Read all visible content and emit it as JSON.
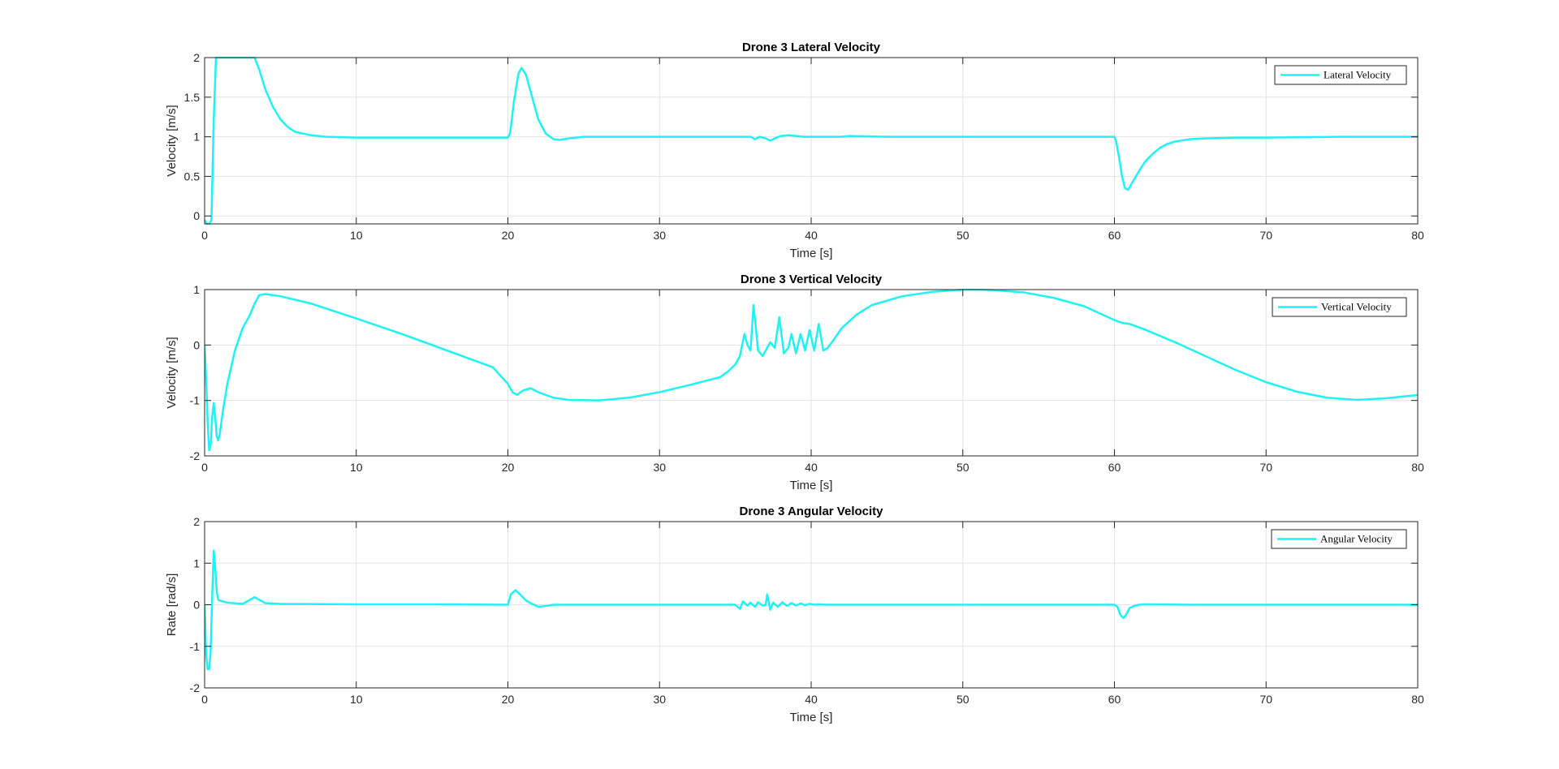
{
  "figure": {
    "background": "#ffffff",
    "line_color": "#1ff2f2",
    "grid_color": "#e3e3e3"
  },
  "chart_data": [
    {
      "type": "line",
      "title": "Drone 3 Lateral Velocity",
      "xlabel": "Time [s]",
      "ylabel": "Velocity [m/s]",
      "xlim": [
        0,
        80
      ],
      "ylim": [
        -0.1,
        2
      ],
      "xticks": [
        0,
        10,
        20,
        30,
        40,
        50,
        60,
        70,
        80
      ],
      "yticks": [
        0,
        0.5,
        1,
        1.5,
        2
      ],
      "ytick_labels": [
        "0",
        "0.5",
        "1",
        "1.5",
        "2"
      ],
      "grid": true,
      "legend_position": "top-right",
      "series": [
        {
          "name": "Lateral Velocity",
          "x": [
            0,
            0.15,
            0.3,
            0.45,
            0.6,
            0.75,
            3.3,
            3.6,
            4.0,
            4.5,
            5.0,
            5.5,
            6.0,
            7.0,
            8.0,
            10,
            15,
            20,
            20.15,
            20.4,
            20.7,
            20.9,
            21.2,
            21.6,
            22.0,
            22.5,
            23.0,
            23.4,
            24,
            25,
            26,
            30,
            35,
            36,
            36.3,
            36.6,
            37.0,
            37.3,
            37.6,
            38.0,
            38.5,
            39.5,
            40.5,
            42,
            42.5,
            45,
            50,
            55,
            60,
            60.1,
            60.3,
            60.5,
            60.7,
            60.9,
            61.2,
            61.6,
            62.0,
            62.5,
            63.0,
            63.5,
            64,
            65,
            66,
            68,
            70,
            75,
            80
          ],
          "y": [
            -0.05,
            -0.1,
            -0.1,
            -0.05,
            1.2,
            2.0,
            2.0,
            1.85,
            1.6,
            1.38,
            1.22,
            1.12,
            1.06,
            1.02,
            1.0,
            0.99,
            0.99,
            0.99,
            1.05,
            1.45,
            1.8,
            1.87,
            1.78,
            1.5,
            1.22,
            1.04,
            0.97,
            0.96,
            0.98,
            1.0,
            1.0,
            1.0,
            1.0,
            1.0,
            0.97,
            1.0,
            0.98,
            0.95,
            0.98,
            1.01,
            1.02,
            1.0,
            1.0,
            1.0,
            1.01,
            1.0,
            1.0,
            1.0,
            1.0,
            0.95,
            0.75,
            0.5,
            0.35,
            0.33,
            0.43,
            0.56,
            0.68,
            0.78,
            0.86,
            0.91,
            0.94,
            0.97,
            0.98,
            0.99,
            0.99,
            1.0,
            1.0
          ]
        }
      ]
    },
    {
      "type": "line",
      "title": "Drone 3 Vertical Velocity",
      "xlabel": "Time [s]",
      "ylabel": "Velocity [m/s]",
      "xlim": [
        0,
        80
      ],
      "ylim": [
        -2,
        1
      ],
      "xticks": [
        0,
        10,
        20,
        30,
        40,
        50,
        60,
        70,
        80
      ],
      "yticks": [
        -2,
        -1,
        0,
        1
      ],
      "ytick_labels": [
        "-2",
        "-1",
        "0",
        "1"
      ],
      "grid": true,
      "legend_position": "top-right",
      "series": [
        {
          "name": "Vertical Velocity",
          "x": [
            0,
            0.1,
            0.2,
            0.3,
            0.4,
            0.5,
            0.6,
            0.7,
            0.8,
            0.9,
            1.0,
            1.2,
            1.5,
            2.0,
            2.5,
            3.0,
            3.3,
            3.6,
            4.0,
            5,
            7,
            10,
            13,
            16,
            19,
            20,
            20.3,
            20.6,
            21.0,
            21.5,
            22,
            23,
            24,
            26,
            28,
            30,
            32,
            34,
            34.5,
            35,
            35.3,
            35.6,
            35.8,
            36.0,
            36.2,
            36.5,
            36.8,
            37.1,
            37.3,
            37.6,
            37.9,
            38.2,
            38.5,
            38.7,
            39.0,
            39.3,
            39.6,
            39.9,
            40.2,
            40.5,
            40.8,
            41.1,
            41.5,
            42,
            43,
            44,
            46,
            48,
            50,
            51,
            52,
            54,
            56,
            58,
            60,
            60.5,
            61,
            62,
            64,
            66,
            68,
            70,
            72,
            74,
            76,
            78,
            80
          ],
          "y": [
            0,
            -0.6,
            -1.4,
            -1.9,
            -1.8,
            -1.3,
            -1.05,
            -1.3,
            -1.65,
            -1.72,
            -1.6,
            -1.2,
            -0.7,
            -0.1,
            0.3,
            0.55,
            0.75,
            0.9,
            0.92,
            0.88,
            0.75,
            0.48,
            0.2,
            -0.1,
            -0.4,
            -0.7,
            -0.85,
            -0.9,
            -0.82,
            -0.78,
            -0.85,
            -0.95,
            -0.99,
            -1.0,
            -0.95,
            -0.85,
            -0.72,
            -0.58,
            -0.48,
            -0.35,
            -0.2,
            0.2,
            0.0,
            -0.1,
            0.72,
            -0.1,
            -0.2,
            -0.05,
            0.05,
            -0.05,
            0.5,
            -0.15,
            -0.05,
            0.2,
            -0.15,
            0.2,
            -0.1,
            0.27,
            -0.1,
            0.38,
            -0.1,
            -0.05,
            0.1,
            0.3,
            0.55,
            0.72,
            0.88,
            0.96,
            1.0,
            1.0,
            0.99,
            0.95,
            0.85,
            0.7,
            0.45,
            0.4,
            0.38,
            0.28,
            0.05,
            -0.2,
            -0.45,
            -0.67,
            -0.84,
            -0.95,
            -0.99,
            -0.96,
            -0.9
          ]
        }
      ]
    },
    {
      "type": "line",
      "title": "Drone 3 Angular Velocity",
      "xlabel": "Time [s]",
      "ylabel": "Rate [rad/s]",
      "xlim": [
        0,
        80
      ],
      "ylim": [
        -2,
        2
      ],
      "xticks": [
        0,
        10,
        20,
        30,
        40,
        50,
        60,
        70,
        80
      ],
      "yticks": [
        -2,
        -1,
        0,
        1,
        2
      ],
      "ytick_labels": [
        "-2",
        "-1",
        "0",
        "1",
        "2"
      ],
      "grid": true,
      "legend_position": "top-right",
      "series": [
        {
          "name": "Angular Velocity",
          "x": [
            0,
            0.1,
            0.2,
            0.3,
            0.4,
            0.5,
            0.6,
            0.7,
            0.8,
            0.9,
            1.0,
            1.5,
            2.5,
            3.0,
            3.3,
            3.6,
            4.0,
            5,
            10,
            15,
            20,
            20.2,
            20.5,
            20.8,
            21.2,
            21.6,
            22.0,
            22.5,
            23,
            25,
            30,
            35,
            35.3,
            35.5,
            35.8,
            36.0,
            36.3,
            36.5,
            36.8,
            37.0,
            37.1,
            37.3,
            37.5,
            37.8,
            38.1,
            38.4,
            38.7,
            39.0,
            39.3,
            39.6,
            39.9,
            40.2,
            40.5,
            41,
            45,
            50,
            55,
            60,
            60.2,
            60.4,
            60.6,
            60.8,
            61.0,
            61.3,
            61.6,
            62,
            65,
            70,
            75,
            80
          ],
          "y": [
            0,
            -1.2,
            -1.55,
            -1.55,
            -1.1,
            0.2,
            1.3,
            0.9,
            0.3,
            0.12,
            0.1,
            0.05,
            0.02,
            0.12,
            0.18,
            0.12,
            0.04,
            0.02,
            0.01,
            0.01,
            0.0,
            0.25,
            0.35,
            0.25,
            0.1,
            0.02,
            -0.05,
            -0.03,
            0.0,
            0.0,
            0.0,
            0.0,
            -0.1,
            0.08,
            -0.02,
            0.05,
            -0.05,
            0.06,
            -0.02,
            0.0,
            0.25,
            -0.12,
            0.05,
            -0.05,
            0.06,
            -0.03,
            0.04,
            -0.02,
            0.03,
            -0.01,
            0.02,
            0.0,
            0.01,
            0.0,
            0.0,
            0.0,
            0.0,
            0.0,
            -0.05,
            -0.25,
            -0.32,
            -0.22,
            -0.08,
            -0.03,
            0.0,
            0.01,
            0.0,
            0.0,
            0.0,
            0.0
          ]
        }
      ]
    }
  ]
}
